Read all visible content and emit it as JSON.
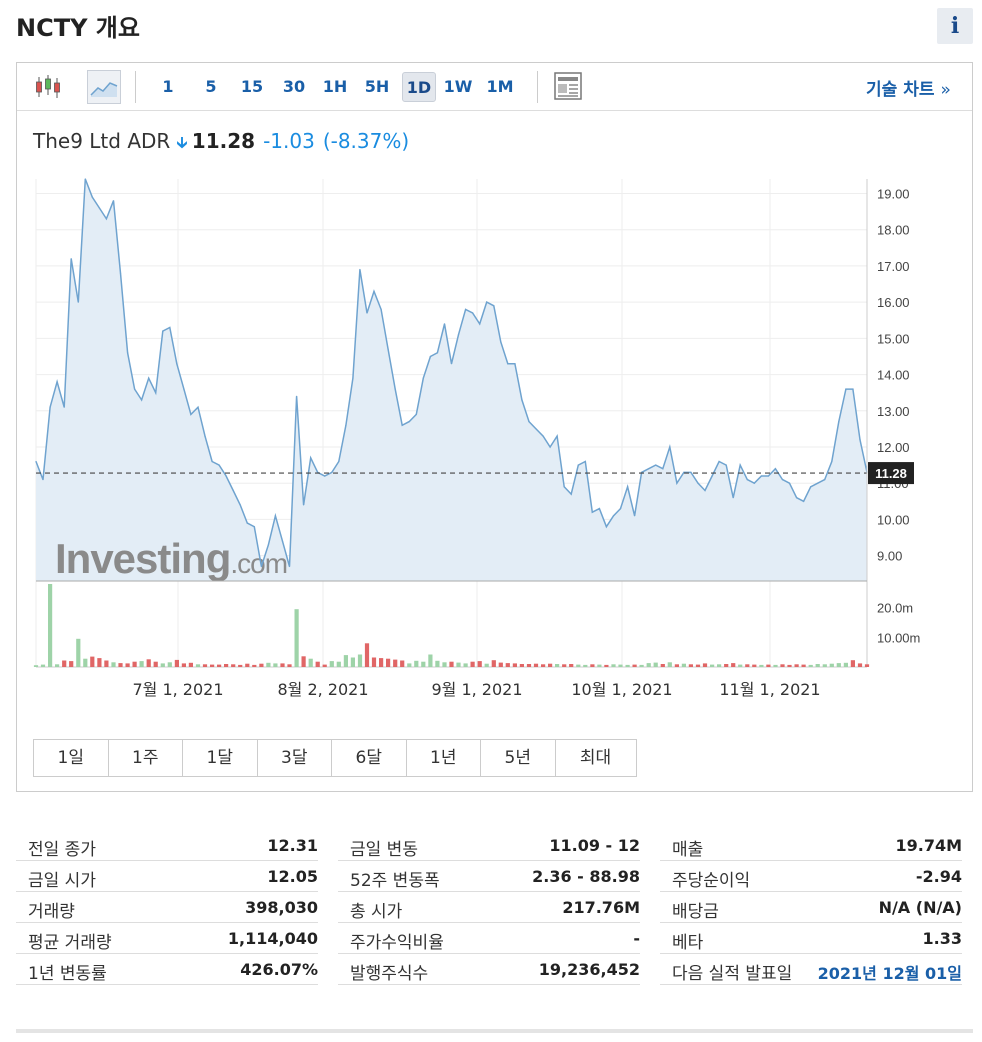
{
  "header": {
    "title": "NCTY 개요",
    "info_label": "i"
  },
  "toolbar": {
    "intervals": [
      "1",
      "5",
      "15",
      "30",
      "1H",
      "5H",
      "1D",
      "1W",
      "1M"
    ],
    "active_interval": "1D",
    "tech_chart_label": "기술 차트",
    "tech_chart_arrow": "»"
  },
  "quote": {
    "name": "The9 Ltd ADR",
    "price": "11.28",
    "change": "-1.03",
    "change_pct": "(-8.37%)"
  },
  "watermark": {
    "brand": "Investing",
    "suffix": ".com"
  },
  "ranges": [
    "1일",
    "1주",
    "1달",
    "3달",
    "6달",
    "1년",
    "5년",
    "최대"
  ],
  "colors": {
    "line": "#6fa3cf",
    "area": "#e3edf6",
    "vol_up": "#9ed3a8",
    "vol_down": "#e06666",
    "accent": "#1a5fa8",
    "down": "#1a8ce0"
  },
  "chart_data": {
    "type": "area",
    "x_ticks": [
      "7월 1, 2021",
      "8월 2, 2021",
      "9월 1, 2021",
      "10월 1, 2021",
      "11월 1, 2021"
    ],
    "y_ticks": [
      "9.00",
      "10.00",
      "11.00",
      "12.00",
      "13.00",
      "14.00",
      "15.00",
      "16.00",
      "17.00",
      "18.00",
      "19.00"
    ],
    "ylim": [
      8.3,
      19.4
    ],
    "current_value": 11.28,
    "current_label": "11.28",
    "volume_ticks": [
      "10.00m",
      "20.0m"
    ],
    "volume_ylim": [
      0,
      29
    ],
    "series": [
      {
        "values": [
          11.6,
          11.1,
          13.1,
          13.8,
          13.1,
          17.2,
          16.0,
          19.4,
          18.9,
          18.6,
          18.3,
          18.8,
          16.8,
          14.6,
          13.6,
          13.3,
          13.9,
          13.5,
          15.2,
          15.3,
          14.3,
          13.6,
          12.9,
          13.1,
          12.3,
          11.6,
          11.5,
          11.2,
          10.8,
          10.4,
          9.9,
          9.8,
          8.7,
          9.3,
          10.1,
          9.4,
          8.7,
          13.4,
          10.4,
          11.7,
          11.3,
          11.2,
          11.3,
          11.6,
          12.6,
          13.9,
          16.9,
          15.7,
          16.3,
          15.8,
          14.7,
          13.6,
          12.6,
          12.7,
          12.9,
          13.9,
          14.5,
          14.6,
          15.4,
          14.3,
          15.1,
          15.8,
          15.7,
          15.4,
          16.0,
          15.9,
          14.9,
          14.3,
          14.3,
          13.3,
          12.7,
          12.5,
          12.3,
          12.0,
          12.3,
          10.9,
          10.7,
          11.5,
          11.6,
          10.2,
          10.3,
          9.8,
          10.1,
          10.3,
          10.9,
          10.1,
          11.3,
          11.4,
          11.5,
          11.4,
          12.0,
          11.0,
          11.3,
          11.3,
          11.0,
          10.8,
          11.2,
          11.6,
          11.5,
          10.6,
          11.5,
          11.1,
          11.0,
          11.2,
          11.2,
          11.4,
          11.1,
          11.0,
          10.6,
          10.5,
          10.9,
          11.0,
          11.1,
          11.6,
          12.7,
          13.6,
          13.6,
          12.2,
          11.3
        ]
      },
      {
        "name": "volume",
        "values": [
          0.6,
          0.8,
          28.0,
          0.9,
          2.2,
          2.0,
          9.5,
          2.8,
          3.5,
          3.0,
          2.2,
          1.6,
          1.3,
          1.2,
          1.8,
          2.0,
          2.6,
          1.8,
          1.2,
          1.6,
          2.4,
          1.2,
          1.4,
          0.9,
          0.9,
          0.8,
          0.8,
          1.0,
          0.9,
          0.7,
          1.1,
          0.7,
          1.1,
          1.4,
          1.2,
          1.2,
          0.9,
          19.5,
          3.6,
          2.8,
          1.8,
          0.8,
          2.0,
          1.8,
          4.0,
          3.2,
          4.2,
          8.0,
          3.2,
          3.0,
          2.8,
          2.5,
          2.2,
          1.2,
          2.1,
          1.8,
          4.2,
          2.1,
          1.6,
          1.8,
          1.5,
          1.2,
          1.8,
          2.0,
          1.1,
          2.3,
          1.5,
          1.3,
          1.2,
          1.0,
          1.0,
          1.1,
          0.9,
          1.1,
          1.0,
          0.9,
          1.0,
          0.8,
          0.7,
          0.9,
          0.8,
          0.7,
          0.9,
          0.8,
          0.7,
          0.8,
          0.7,
          1.3,
          1.5,
          1.0,
          1.6,
          0.9,
          1.1,
          0.9,
          0.8,
          1.2,
          0.8,
          0.9,
          1.0,
          1.3,
          0.8,
          0.9,
          0.8,
          0.7,
          0.8,
          0.7,
          0.9,
          0.7,
          0.9,
          0.8,
          0.7,
          1.0,
          0.9,
          1.1,
          1.3,
          1.4,
          2.3,
          1.2,
          0.9
        ]
      }
    ],
    "volume_up": [
      true,
      true,
      true,
      true,
      false,
      false,
      true,
      true,
      false,
      false,
      false,
      true,
      false,
      false,
      false,
      true,
      false,
      false,
      true,
      true,
      false,
      false,
      false,
      true,
      false,
      false,
      false,
      false,
      false,
      false,
      false,
      false,
      false,
      true,
      true,
      false,
      false,
      true,
      false,
      true,
      false,
      false,
      true,
      true,
      true,
      true,
      true,
      false,
      false,
      false,
      false,
      false,
      false,
      true,
      true,
      true,
      true,
      true,
      true,
      false,
      true,
      true,
      false,
      false,
      true,
      false,
      false,
      false,
      false,
      false,
      false,
      false,
      false,
      false,
      true,
      false,
      false,
      true,
      true,
      false,
      true,
      false,
      true,
      true,
      true,
      false,
      true,
      true,
      true,
      false,
      true,
      false,
      true,
      false,
      false,
      false,
      true,
      true,
      false,
      false,
      true,
      false,
      false,
      true,
      false,
      true,
      false,
      false,
      false,
      false,
      true,
      true,
      true,
      true,
      true,
      true,
      false,
      false,
      false
    ]
  },
  "stats": [
    [
      {
        "label": "전일 종가",
        "value": "12.31"
      },
      {
        "label": "금일 시가",
        "value": "12.05"
      },
      {
        "label": "거래량",
        "value": "398,030"
      },
      {
        "label": "평균 거래량",
        "value": "1,114,040"
      },
      {
        "label": "1년 변동률",
        "value": "426.07%"
      }
    ],
    [
      {
        "label": "금일 변동",
        "value": "11.09 - 12"
      },
      {
        "label": "52주 변동폭",
        "value": "2.36 - 88.98"
      },
      {
        "label": "총 시가",
        "value": "217.76M"
      },
      {
        "label": "주가수익비율",
        "value": "-"
      },
      {
        "label": "발행주식수",
        "value": "19,236,452"
      }
    ],
    [
      {
        "label": "매출",
        "value": "19.74M"
      },
      {
        "label": "주당순이익",
        "value": "-2.94"
      },
      {
        "label": "배당금",
        "value": "N/A (N/A)"
      },
      {
        "label": "베타",
        "value": "1.33"
      },
      {
        "label": "다음 실적 발표일",
        "value": "2021년 12월 01일",
        "link": true
      }
    ]
  ]
}
